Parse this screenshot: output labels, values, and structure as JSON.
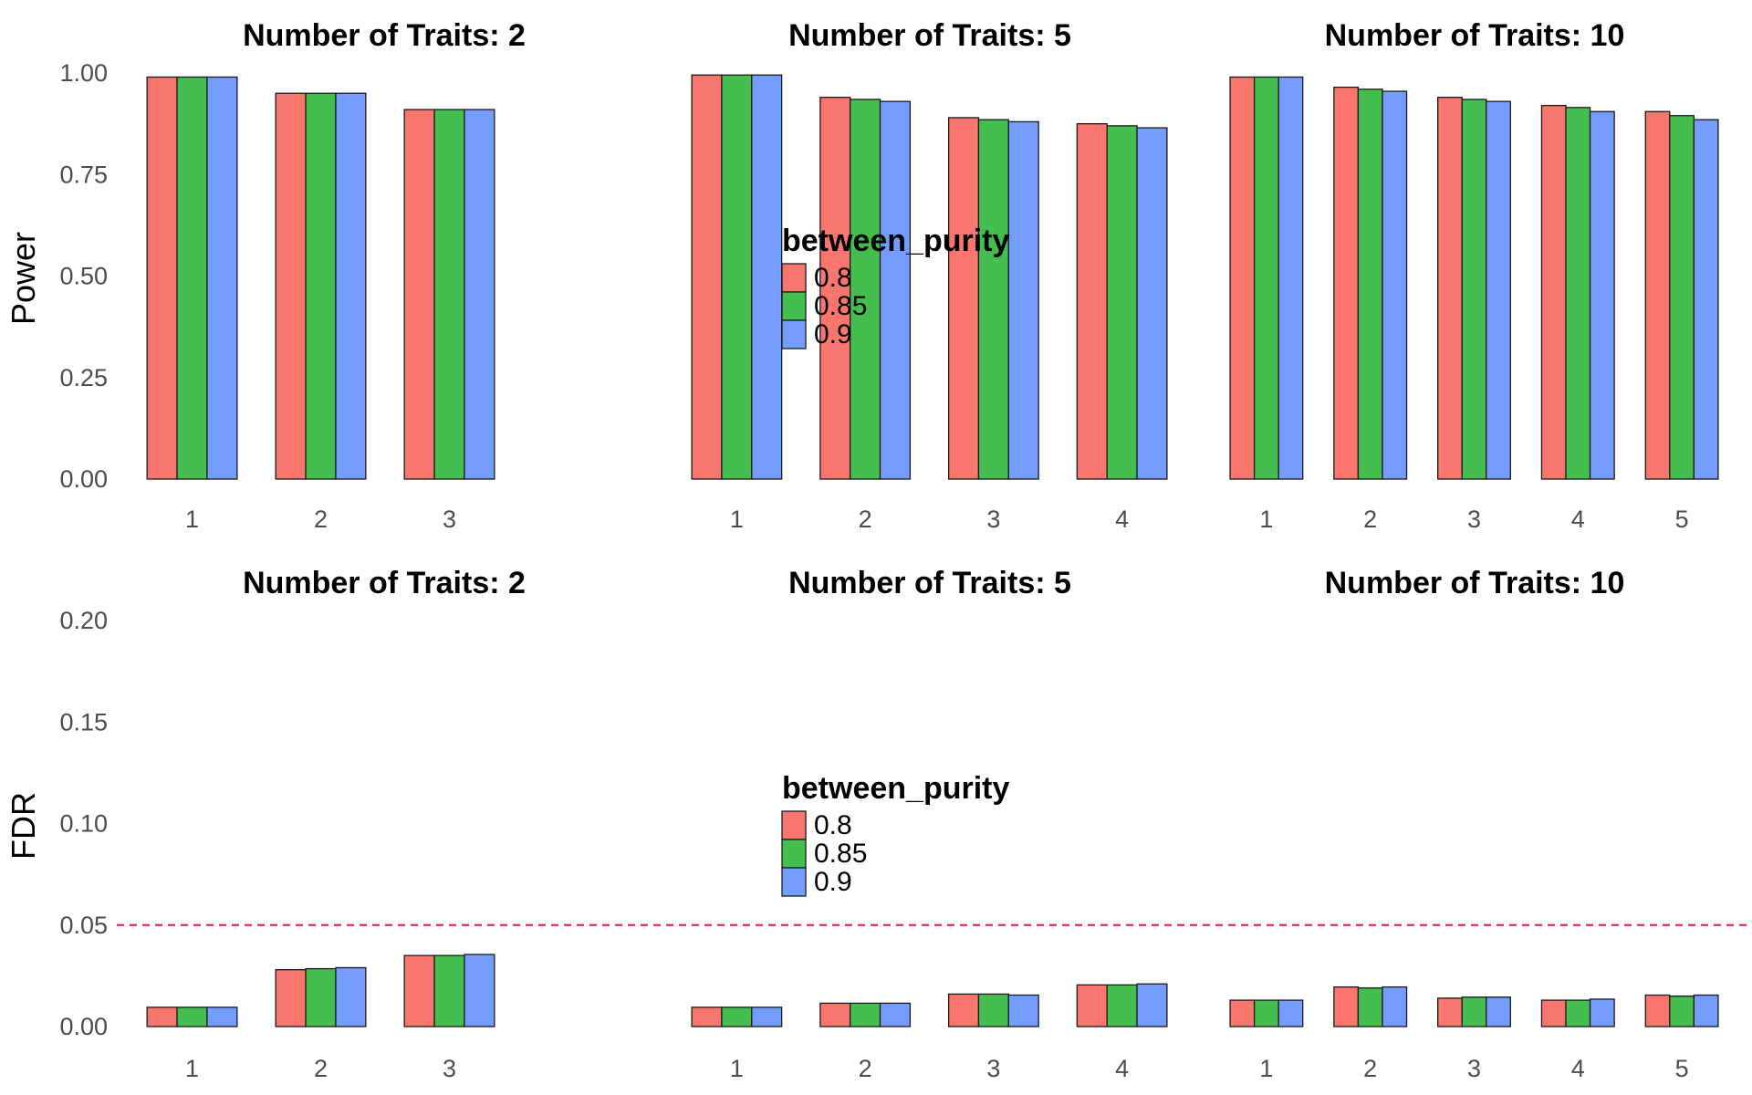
{
  "colors": {
    "0.8": "#F8766D",
    "0.85": "#44BE4F",
    "0.9": "#749DFF",
    "threshold": "#E8193C",
    "bar_outline": "#1a1a1a"
  },
  "chart_data": [
    {
      "type": "bar",
      "row": "power",
      "ylabel": "Power",
      "ylim": [
        0,
        1.0
      ],
      "yticks": [
        "0.00",
        "0.25",
        "0.50",
        "0.75",
        "1.00"
      ],
      "legend": {
        "title": "between_purity",
        "labels": [
          "0.8",
          "0.85",
          "0.9"
        ],
        "placement": "center"
      },
      "panels": [
        {
          "title": "Number of Traits: 2",
          "categories": [
            "1",
            "2",
            "3"
          ],
          "series": [
            {
              "name": "0.8",
              "values": [
                0.99,
                0.95,
                0.91
              ]
            },
            {
              "name": "0.85",
              "values": [
                0.99,
                0.95,
                0.91
              ]
            },
            {
              "name": "0.9",
              "values": [
                0.99,
                0.95,
                0.91
              ]
            }
          ]
        },
        {
          "title": "Number of Traits: 5",
          "categories": [
            "1",
            "2",
            "3",
            "4"
          ],
          "series": [
            {
              "name": "0.8",
              "values": [
                0.995,
                0.94,
                0.89,
                0.875
              ]
            },
            {
              "name": "0.85",
              "values": [
                0.995,
                0.935,
                0.885,
                0.87
              ]
            },
            {
              "name": "0.9",
              "values": [
                0.995,
                0.93,
                0.88,
                0.865
              ]
            }
          ]
        },
        {
          "title": "Number of Traits: 10",
          "categories": [
            "1",
            "2",
            "3",
            "4",
            "5"
          ],
          "series": [
            {
              "name": "0.8",
              "values": [
                0.99,
                0.965,
                0.94,
                0.92,
                0.905
              ]
            },
            {
              "name": "0.85",
              "values": [
                0.99,
                0.96,
                0.935,
                0.915,
                0.895
              ]
            },
            {
              "name": "0.9",
              "values": [
                0.99,
                0.955,
                0.93,
                0.905,
                0.885
              ]
            }
          ]
        }
      ]
    },
    {
      "type": "bar",
      "row": "fdr",
      "ylabel": "FDR",
      "ylim": [
        0,
        0.2
      ],
      "yticks": [
        "0.00",
        "0.05",
        "0.10",
        "0.15",
        "0.20"
      ],
      "hline": 0.05,
      "hline_style": "dashed",
      "legend": {
        "title": "between_purity",
        "labels": [
          "0.8",
          "0.85",
          "0.9"
        ],
        "placement": "center"
      },
      "panels": [
        {
          "title": "Number of Traits: 2",
          "categories": [
            "1",
            "2",
            "3"
          ],
          "series": [
            {
              "name": "0.8",
              "values": [
                0.0095,
                0.028,
                0.035
              ]
            },
            {
              "name": "0.85",
              "values": [
                0.0095,
                0.0285,
                0.035
              ]
            },
            {
              "name": "0.9",
              "values": [
                0.0095,
                0.029,
                0.0355
              ]
            }
          ]
        },
        {
          "title": "Number of Traits: 5",
          "categories": [
            "1",
            "2",
            "3",
            "4"
          ],
          "series": [
            {
              "name": "0.8",
              "values": [
                0.0095,
                0.0115,
                0.016,
                0.0205
              ]
            },
            {
              "name": "0.85",
              "values": [
                0.0095,
                0.0115,
                0.016,
                0.0205
              ]
            },
            {
              "name": "0.9",
              "values": [
                0.0095,
                0.0115,
                0.0155,
                0.021
              ]
            }
          ]
        },
        {
          "title": "Number of Traits: 10",
          "categories": [
            "1",
            "2",
            "3",
            "4",
            "5"
          ],
          "series": [
            {
              "name": "0.8",
              "values": [
                0.013,
                0.0195,
                0.014,
                0.013,
                0.0155
              ]
            },
            {
              "name": "0.85",
              "values": [
                0.013,
                0.019,
                0.0145,
                0.013,
                0.015
              ]
            },
            {
              "name": "0.9",
              "values": [
                0.013,
                0.0195,
                0.0145,
                0.0135,
                0.0155
              ]
            }
          ]
        }
      ]
    }
  ]
}
